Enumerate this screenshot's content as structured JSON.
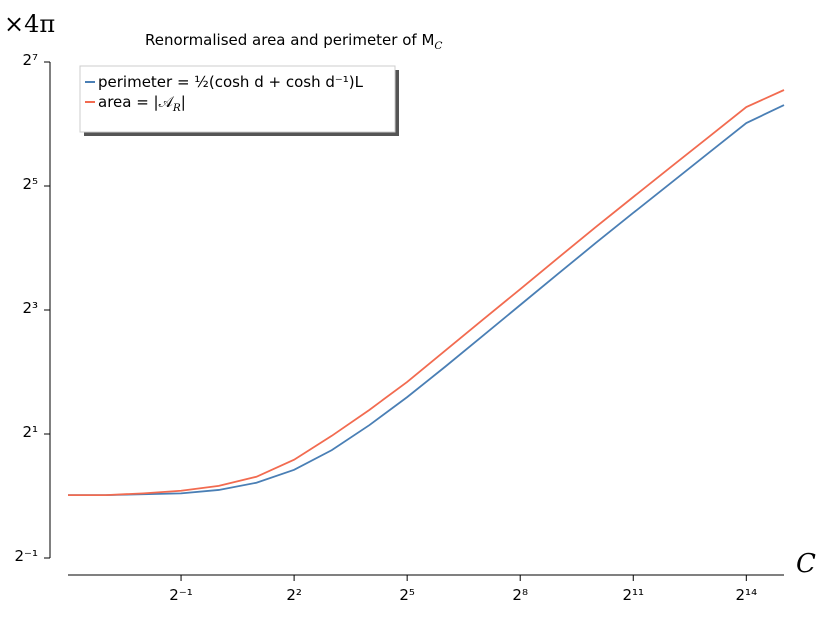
{
  "chart_data": {
    "type": "line",
    "title": "Renormalised area and perimeter of M_C",
    "y_unit_label": "×4π",
    "x_label": "C",
    "log_scale": true,
    "log_base": 2,
    "x": [
      0.0625,
      0.125,
      0.25,
      0.5,
      1,
      2,
      4,
      8,
      16,
      32,
      64,
      128,
      256,
      512,
      1024,
      2048,
      4096,
      8192,
      16384,
      32768
    ],
    "series": [
      {
        "name": "perimeter = ½(cosh d + cosh d⁻¹)L",
        "color": "#4a7fb5",
        "values": [
          1.01,
          1.01,
          1.02,
          1.03,
          1.07,
          1.16,
          1.34,
          1.67,
          2.21,
          3.02,
          4.23,
          5.98,
          8.46,
          11.97,
          16.9,
          23.7,
          33.1,
          46.3,
          64.7,
          79.1
        ]
      },
      {
        "name": "area = |𝒜_R|",
        "color": "#f26b50",
        "values": [
          1.01,
          1.01,
          1.03,
          1.06,
          1.12,
          1.24,
          1.5,
          1.96,
          2.62,
          3.58,
          5.06,
          7.16,
          10.1,
          14.3,
          20.2,
          28.3,
          39.6,
          55.3,
          77.4,
          93.6
        ]
      }
    ],
    "xlim": [
      0.0625,
      32768
    ],
    "ylim": [
      0.5,
      128
    ],
    "xticks": [
      {
        "value": 0.5,
        "label": "2⁻¹"
      },
      {
        "value": 4,
        "label": "2²"
      },
      {
        "value": 32,
        "label": "2⁵"
      },
      {
        "value": 256,
        "label": "2⁸"
      },
      {
        "value": 2048,
        "label": "2¹¹"
      },
      {
        "value": 16384,
        "label": "2¹⁴"
      }
    ],
    "yticks": [
      {
        "value": 0.5,
        "label": "2⁻¹"
      },
      {
        "value": 2,
        "label": "2¹"
      },
      {
        "value": 8,
        "label": "2³"
      },
      {
        "value": 32,
        "label": "2⁵"
      },
      {
        "value": 128,
        "label": "2⁷"
      }
    ],
    "legend": "upper left"
  }
}
